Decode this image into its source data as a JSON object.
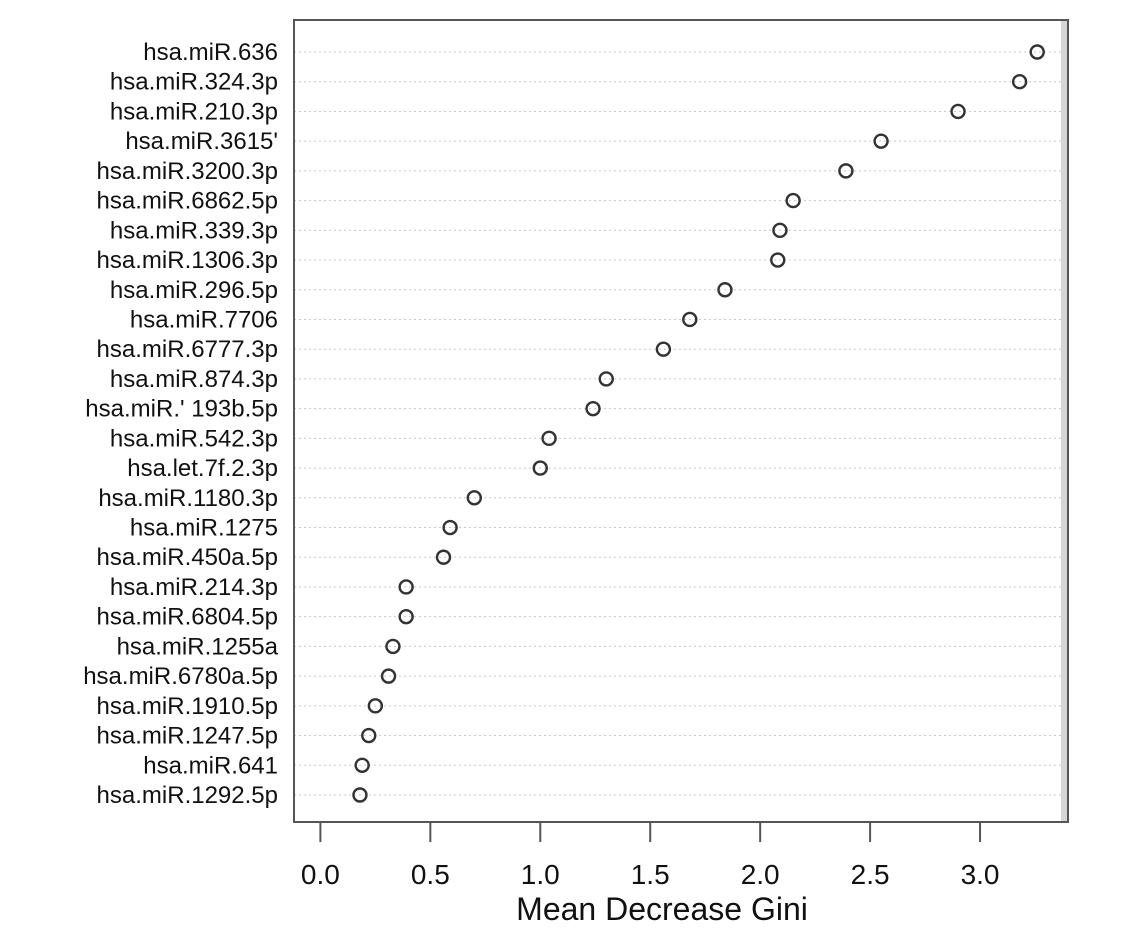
{
  "chart_data": {
    "type": "scatter",
    "title": "",
    "xlabel": "Mean Decrease Gini",
    "ylabel": "",
    "xlim": [
      -0.12,
      3.4
    ],
    "xticks": [
      0.0,
      0.5,
      1.0,
      1.5,
      2.0,
      2.5,
      3.0
    ],
    "xtick_labels": [
      "0.0",
      "0.5",
      "1.0",
      "1.5",
      "2.0",
      "2.5",
      "3.0"
    ],
    "grid": "dotted horizontal lines",
    "categories": [
      "hsa.miR.636",
      "hsa.miR.324.3p",
      "hsa.miR.210.3p",
      "hsa.miR.3615'",
      "hsa.miR.3200.3p",
      "hsa.miR.6862.5p",
      "hsa.miR.339.3p",
      "hsa.miR.1306.3p",
      "hsa.miR.296.5p",
      "hsa.miR.7706",
      "hsa.miR.6777.3p",
      "hsa.miR.874.3p",
      "hsa.miR.' 193b.5p",
      "hsa.miR.542.3p",
      "hsa.let.7f.2.3p",
      "hsa.miR.1180.3p",
      "hsa.miR.1275",
      "hsa.miR.450a.5p",
      "hsa.miR.214.3p",
      "hsa.miR.6804.5p",
      "hsa.miR.1255a",
      "hsa.miR.6780a.5p",
      "hsa.miR.1910.5p",
      "hsa.miR.1247.5p",
      "hsa.miR.641",
      "hsa.miR.1292.5p"
    ],
    "values": [
      3.26,
      3.18,
      2.9,
      2.55,
      2.39,
      2.15,
      2.09,
      2.08,
      1.84,
      1.68,
      1.56,
      1.3,
      1.24,
      1.04,
      1.0,
      0.7,
      0.59,
      0.56,
      0.39,
      0.39,
      0.33,
      0.31,
      0.25,
      0.22,
      0.19,
      0.18
    ]
  }
}
